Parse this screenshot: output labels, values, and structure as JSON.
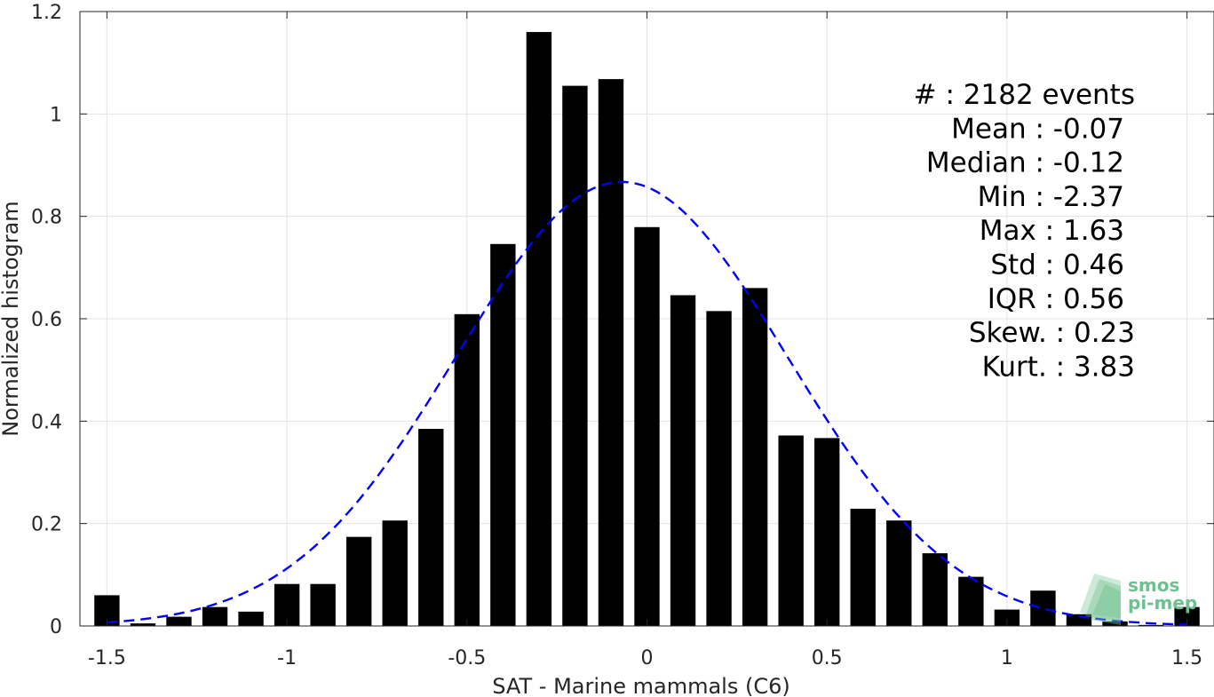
{
  "chart_data": {
    "type": "bar",
    "xlabel": "SAT - Marine mammals (C6)",
    "ylabel": "Normalized histogram",
    "xlim": [
      -1.575,
      1.575
    ],
    "ylim": [
      0,
      1.2
    ],
    "xticks": [
      -1.5,
      -1,
      -0.5,
      0,
      0.5,
      1,
      1.5
    ],
    "xtick_labels": [
      "-1.5",
      "-1",
      "-0.5",
      "0",
      "0.5",
      "1",
      "1.5"
    ],
    "yticks": [
      0,
      0.2,
      0.4,
      0.6,
      0.8,
      1,
      1.2
    ],
    "ytick_labels": [
      "0",
      "0.2",
      "0.4",
      "0.6",
      "0.8",
      "1",
      "1.2"
    ],
    "grid": true,
    "bar_color": "#000000",
    "fit_color": "#0000ff",
    "x": [
      -1.5,
      -1.4,
      -1.3,
      -1.2,
      -1.1,
      -1.0,
      -0.9,
      -0.8,
      -0.7,
      -0.6,
      -0.5,
      -0.4,
      -0.3,
      -0.2,
      -0.1,
      0.0,
      0.1,
      0.2,
      0.3,
      0.4,
      0.5,
      0.6,
      0.7,
      0.8,
      0.9,
      1.0,
      1.1,
      1.2,
      1.3,
      1.4,
      1.5
    ],
    "values": [
      0.06,
      0.005,
      0.018,
      0.037,
      0.028,
      0.082,
      0.082,
      0.174,
      0.206,
      0.385,
      0.609,
      0.746,
      1.16,
      1.055,
      1.068,
      0.779,
      0.646,
      0.615,
      0.66,
      0.372,
      0.367,
      0.229,
      0.206,
      0.142,
      0.096,
      0.032,
      0.069,
      0.023,
      0.009,
      0.002,
      0.037
    ],
    "bar_width": 0.07,
    "fit": {
      "style": "dashed",
      "mean": -0.07,
      "std": 0.46
    },
    "stats": [
      "#  : 2182 events",
      "Mean : -0.07",
      "Median : -0.12",
      "Min : -2.37",
      "Max : 1.63",
      "Std : 0.46",
      "IQR : 0.56",
      "Skew. : 0.23",
      "Kurt. : 3.83"
    ],
    "logo": {
      "line1": "smos",
      "line2": "pi-mep",
      "color": "#6fc08f"
    }
  }
}
